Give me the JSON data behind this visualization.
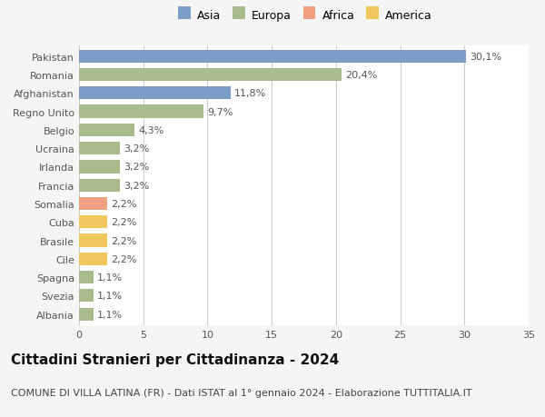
{
  "categories": [
    "Albania",
    "Svezia",
    "Spagna",
    "Cile",
    "Brasile",
    "Cuba",
    "Somalia",
    "Francia",
    "Irlanda",
    "Ucraina",
    "Belgio",
    "Regno Unito",
    "Afghanistan",
    "Romania",
    "Pakistan"
  ],
  "values": [
    1.1,
    1.1,
    1.1,
    2.2,
    2.2,
    2.2,
    2.2,
    3.2,
    3.2,
    3.2,
    4.3,
    9.7,
    11.8,
    20.4,
    30.1
  ],
  "labels": [
    "1,1%",
    "1,1%",
    "1,1%",
    "2,2%",
    "2,2%",
    "2,2%",
    "2,2%",
    "3,2%",
    "3,2%",
    "3,2%",
    "4,3%",
    "9,7%",
    "11,8%",
    "20,4%",
    "30,1%"
  ],
  "colors": [
    "#a8bb8a",
    "#a8bb8a",
    "#a8bb8a",
    "#f0c75a",
    "#f0c75a",
    "#f0c75a",
    "#f0a080",
    "#a8bb8a",
    "#a8bb8a",
    "#a8bb8a",
    "#a8bb8a",
    "#a8bb8a",
    "#7b9ec9",
    "#a8bb8a",
    "#7b9ec9"
  ],
  "legend_labels": [
    "Asia",
    "Europa",
    "Africa",
    "America"
  ],
  "legend_colors": [
    "#7b9ec9",
    "#a8bb8a",
    "#f0a080",
    "#f0c75a"
  ],
  "title": "Cittadini Stranieri per Cittadinanza - 2024",
  "subtitle": "COMUNE DI VILLA LATINA (FR) - Dati ISTAT al 1° gennaio 2024 - Elaborazione TUTTITALIA.IT",
  "xlim": [
    0,
    35
  ],
  "xticks": [
    0,
    5,
    10,
    15,
    20,
    25,
    30,
    35
  ],
  "background_color": "#f5f5f5",
  "bar_background_color": "#ffffff",
  "grid_color": "#cccccc",
  "title_fontsize": 11,
  "subtitle_fontsize": 8,
  "label_fontsize": 8,
  "tick_fontsize": 8,
  "legend_fontsize": 9
}
